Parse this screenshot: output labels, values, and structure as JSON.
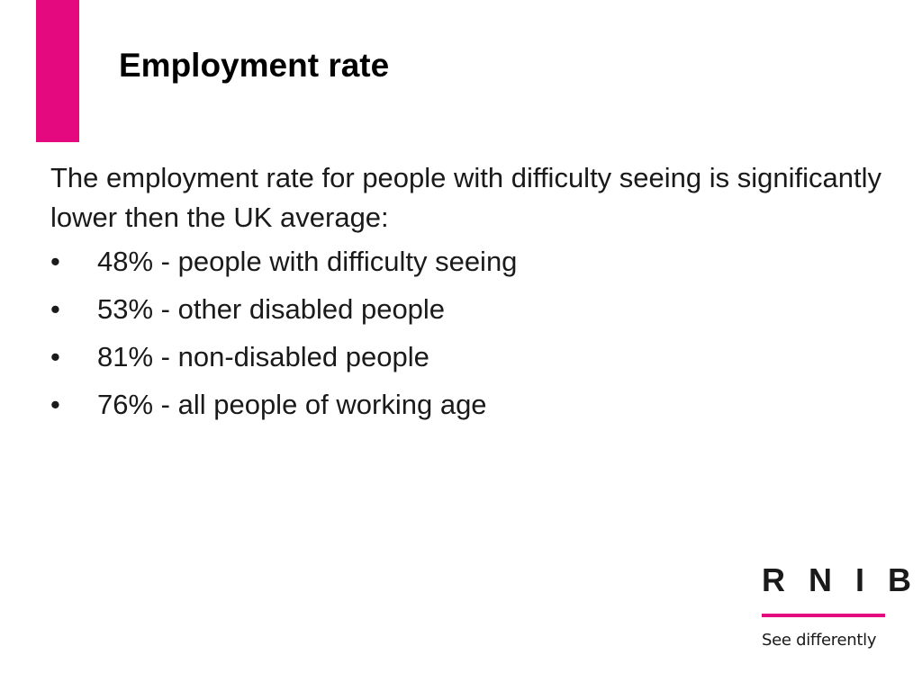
{
  "slide": {
    "title": "Employment rate",
    "intro": "The employment rate for people with difficulty seeing is significantly lower then the UK average:",
    "bullet_symbol": "•",
    "bullets": [
      "48% - people with difficulty seeing",
      "53% - other disabled people",
      "81% - non-disabled people",
      "76% - all people of working age"
    ]
  },
  "logo": {
    "wordmark": "R N I B",
    "tagline": "See differently"
  },
  "colors": {
    "accent": "#e5097f",
    "text": "#1a1a1a",
    "background": "#ffffff"
  }
}
